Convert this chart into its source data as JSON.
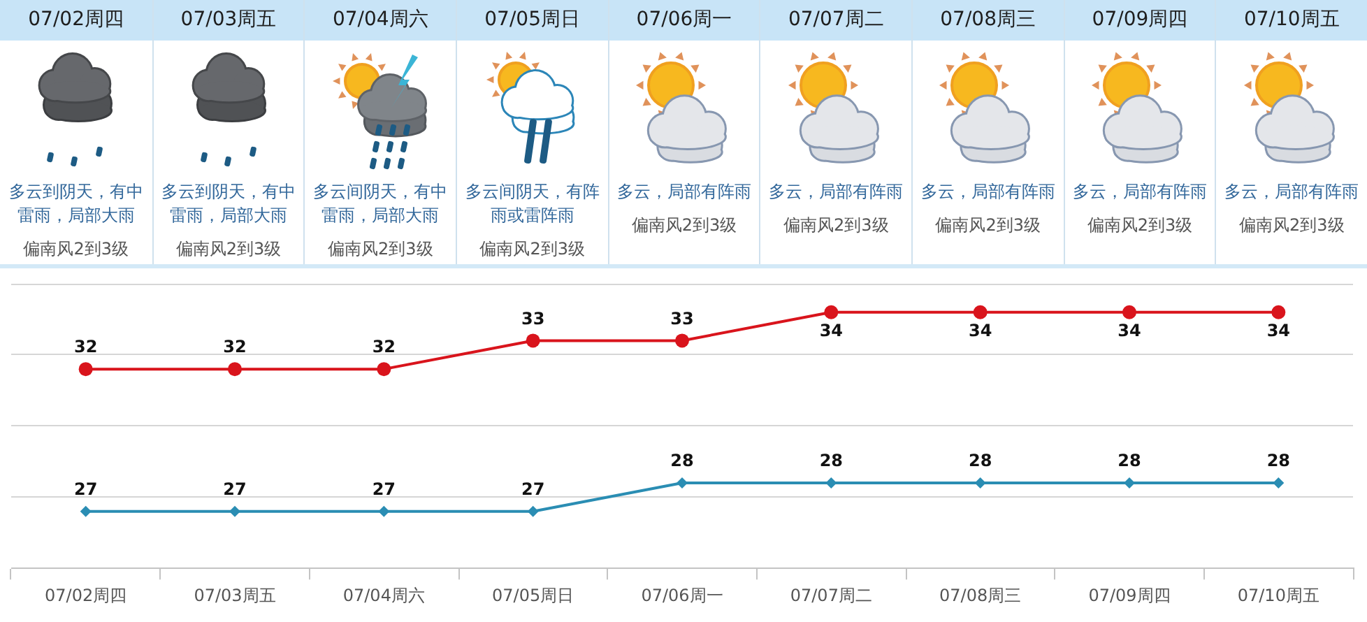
{
  "chart_data": [
    {
      "type": "other",
      "categories": [
        "07/02周四",
        "07/03周五",
        "07/04周六",
        "07/05周日",
        "07/06周一",
        "07/07周二",
        "07/08周三",
        "07/09周四",
        "07/10周五"
      ],
      "annotations": [
        "多云到阴天，有中雷雨，局部大雨",
        "偏南风2到3级",
        "多云到阴天，有中雷雨，局部大雨",
        "偏南风2到3级",
        "多云间阴天，有中雷雨，局部大雨",
        "偏南风2到3级",
        "多云间阴天，有阵雨或雷阵雨",
        "偏南风2到3级",
        "多云，局部有阵雨",
        "偏南风2到3级",
        "多云，局部有阵雨",
        "偏南风2到3级",
        "多云，局部有阵雨",
        "偏南风2到3级",
        "多云，局部有阵雨",
        "偏南风2到3级",
        "多云，局部有阵雨",
        "偏南风2到3级"
      ]
    },
    {
      "type": "line",
      "categories": [
        "07/02周四",
        "07/03周五",
        "07/04周六",
        "07/05周日",
        "07/06周一",
        "07/07周二",
        "07/08周三",
        "07/09周四",
        "07/10周五"
      ],
      "series": [
        {
          "color": "#d9141c",
          "marker": "circle",
          "values": [
            32,
            32,
            32,
            33,
            33,
            34,
            34,
            34,
            34
          ]
        },
        {
          "color": "#2a8db3",
          "marker": "diamond",
          "values": [
            27,
            27,
            27,
            27,
            28,
            28,
            28,
            28,
            28
          ]
        }
      ],
      "ylim": [
        25,
        35
      ],
      "yticks": [
        {
          "value": 25,
          "label": null
        },
        {
          "value": 27.5,
          "label": null
        },
        {
          "value": 30,
          "label": null
        },
        {
          "value": 32.5,
          "label": null
        },
        {
          "value": 35,
          "label": null
        }
      ],
      "grid": "y",
      "tick_labels": "x",
      "data_labels": true
    }
  ]
}
